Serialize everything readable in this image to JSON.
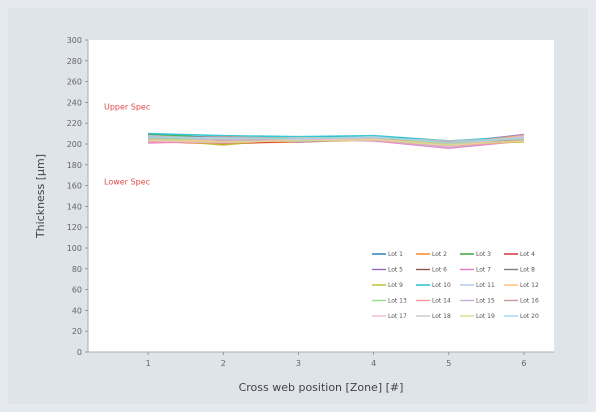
{
  "chart_data": {
    "type": "line",
    "xlabel": "Cross web position [Zone] [#]",
    "ylabel": "Thickness [µm]",
    "x": [
      1,
      2,
      3,
      4,
      5,
      6
    ],
    "xlim": [
      0.2,
      6.4
    ],
    "ylim": [
      0,
      300
    ],
    "yticks": [
      0,
      20,
      40,
      60,
      80,
      100,
      120,
      140,
      160,
      180,
      200,
      220,
      240,
      260,
      280,
      300
    ],
    "ytick_labels": [
      "0",
      "20",
      "40",
      "60",
      "80",
      "100",
      "120",
      "140",
      "160",
      "180",
      "200",
      "220",
      "240",
      "260",
      "280",
      "300"
    ],
    "xtick_labels": [
      "1",
      "2",
      "3",
      "4",
      "5",
      "6"
    ],
    "grid": false,
    "legend_position": "lower-right",
    "annotations": [
      {
        "text": "Upper Spec",
        "y": 236
      },
      {
        "text": "Lower Spec",
        "y": 164
      }
    ],
    "series": [
      {
        "name": "Lot 1",
        "color": "#1f77b4",
        "values": [
          207,
          205,
          204,
          206,
          200,
          203
        ]
      },
      {
        "name": "Lot 2",
        "color": "#ff7f0e",
        "values": [
          202,
          201,
          202,
          204,
          197,
          206
        ]
      },
      {
        "name": "Lot 3",
        "color": "#2ca02c",
        "values": [
          209,
          206,
          206,
          207,
          203,
          204
        ]
      },
      {
        "name": "Lot 4",
        "color": "#d62728",
        "values": [
          203,
          200,
          203,
          205,
          199,
          204
        ]
      },
      {
        "name": "Lot 5",
        "color": "#9467bd",
        "values": [
          206,
          207,
          202,
          205,
          201,
          209
        ]
      },
      {
        "name": "Lot 6",
        "color": "#8c564b",
        "values": [
          204,
          201,
          204,
          206,
          198,
          205
        ]
      },
      {
        "name": "Lot 7",
        "color": "#e377c2",
        "values": [
          201,
          203,
          205,
          203,
          196,
          203
        ]
      },
      {
        "name": "Lot 8",
        "color": "#7f7f7f",
        "values": [
          208,
          204,
          203,
          207,
          202,
          206
        ]
      },
      {
        "name": "Lot 9",
        "color": "#bcbd22",
        "values": [
          205,
          199,
          206,
          205,
          200,
          202
        ]
      },
      {
        "name": "Lot 10",
        "color": "#17becf",
        "values": [
          210,
          208,
          207,
          208,
          203,
          207
        ]
      },
      {
        "name": "Lot 11",
        "color": "#aec7e8",
        "values": [
          203,
          205,
          203,
          204,
          197,
          204
        ]
      },
      {
        "name": "Lot 12",
        "color": "#ffbb78",
        "values": [
          206,
          202,
          205,
          206,
          200,
          208
        ]
      },
      {
        "name": "Lot 13",
        "color": "#98df8a",
        "values": [
          204,
          206,
          204,
          205,
          199,
          205
        ]
      },
      {
        "name": "Lot 14",
        "color": "#ff9896",
        "values": [
          202,
          203,
          206,
          204,
          198,
          203
        ]
      },
      {
        "name": "Lot 15",
        "color": "#c5b0d5",
        "values": [
          207,
          204,
          203,
          207,
          201,
          206
        ]
      },
      {
        "name": "Lot 16",
        "color": "#c49c94",
        "values": [
          205,
          207,
          205,
          206,
          202,
          204
        ]
      },
      {
        "name": "Lot 17",
        "color": "#f7b6d2",
        "values": [
          203,
          201,
          204,
          205,
          198,
          207
        ]
      },
      {
        "name": "Lot 18",
        "color": "#c7c7c7",
        "values": [
          208,
          205,
          206,
          206,
          203,
          205
        ]
      },
      {
        "name": "Lot 19",
        "color": "#dbdb8d",
        "values": [
          204,
          202,
          203,
          204,
          199,
          203
        ]
      },
      {
        "name": "Lot 20",
        "color": "#9edae5",
        "values": [
          206,
          206,
          205,
          207,
          201,
          206
        ]
      }
    ]
  }
}
